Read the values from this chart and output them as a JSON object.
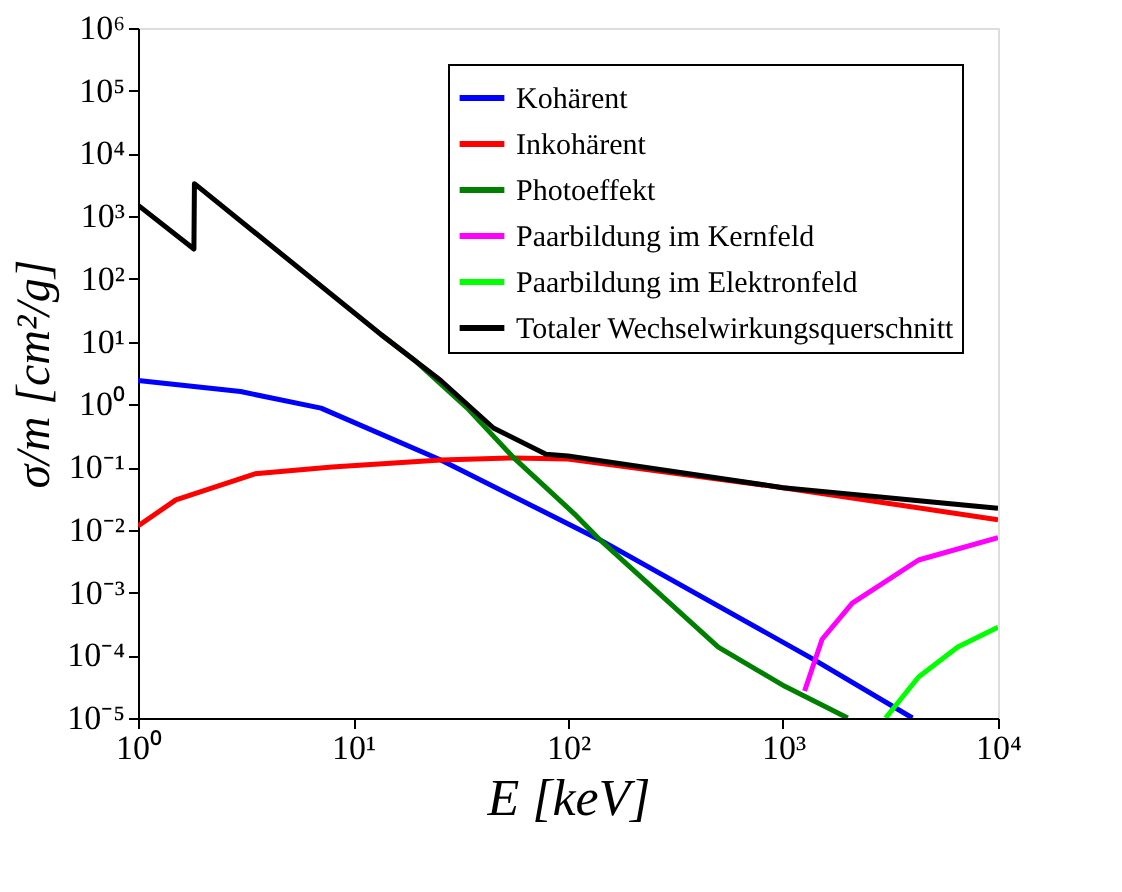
{
  "chart_data": {
    "type": "line",
    "xlabel": "E [keV]",
    "ylabel": "σ/m [cm²/g]",
    "log": "xy",
    "grid": false,
    "legend": "top right",
    "marker": "none",
    "line_style": "solid",
    "xlim": [
      1,
      10000
    ],
    "ylim": [
      1e-05,
      1000000
    ],
    "xticks": [
      {
        "value": 1,
        "label": "10⁰"
      },
      {
        "value": 10,
        "label": "10¹"
      },
      {
        "value": 100,
        "label": "10²"
      },
      {
        "value": 1000,
        "label": "10³"
      },
      {
        "value": 10000,
        "label": "10⁴"
      }
    ],
    "yticks": [
      {
        "value": 1e-05,
        "label": "10⁻⁵"
      },
      {
        "value": 0.0001,
        "label": "10⁻⁴"
      },
      {
        "value": 0.001,
        "label": "10⁻³"
      },
      {
        "value": 0.01,
        "label": "10⁻²"
      },
      {
        "value": 0.1,
        "label": "10⁻¹"
      },
      {
        "value": 1,
        "label": "10⁰"
      },
      {
        "value": 10,
        "label": "10¹"
      },
      {
        "value": 100,
        "label": "10²"
      },
      {
        "value": 1000,
        "label": "10³"
      },
      {
        "value": 10000,
        "label": "10⁴"
      },
      {
        "value": 100000,
        "label": "10⁵"
      },
      {
        "value": 1000000,
        "label": "10⁶"
      }
    ],
    "series": [
      {
        "name": "Kohärent",
        "color": "#0000ff",
        "x": [
          1,
          3,
          7.1,
          25.6,
          141,
          1380,
          4000
        ],
        "values": [
          2.4,
          1.6,
          0.87,
          0.13,
          0.0069,
          8.7e-05,
          1e-05
        ]
      },
      {
        "name": "Inkohärent",
        "color": "#ff0000",
        "x": [
          1,
          1.5,
          3.5,
          8,
          25.6,
          56,
          100,
          1000,
          10000
        ],
        "values": [
          0.0115,
          0.03,
          0.078,
          0.1,
          0.13,
          0.14,
          0.135,
          0.047,
          0.0145
        ]
      },
      {
        "name": "Photoeffekt",
        "color": "#008000",
        "x": [
          13.5,
          19.4,
          34,
          56,
          107,
          141,
          500,
          1020,
          2000
        ],
        "values": [
          13,
          5,
          0.87,
          0.14,
          0.018,
          0.0069,
          0.000135,
          3.2e-05,
          1e-05
        ]
      },
      {
        "name": "Paarbildung im Kernfeld",
        "color": "#ff00ff",
        "x": [
          1260,
          1520,
          2100,
          4270,
          10000
        ],
        "values": [
          2.7e-05,
          0.00018,
          0.00068,
          0.0033,
          0.0075
        ]
      },
      {
        "name": "Paarbildung im Elektronfeld",
        "color": "#00ff00",
        "x": [
          3000,
          4270,
          6500,
          10000
        ],
        "values": [
          1e-05,
          4.5e-05,
          0.000135,
          0.00028
        ]
      },
      {
        "name": "Totaler Wechselwirkungsquerschnitt",
        "color": "#000000",
        "x": [
          1,
          1.82,
          1.83,
          13.5,
          25.6,
          45,
          79,
          100,
          1000,
          10000
        ],
        "values": [
          1500,
          300,
          3300,
          13,
          2.4,
          0.42,
          0.16,
          0.15,
          0.047,
          0.022
        ]
      }
    ]
  }
}
